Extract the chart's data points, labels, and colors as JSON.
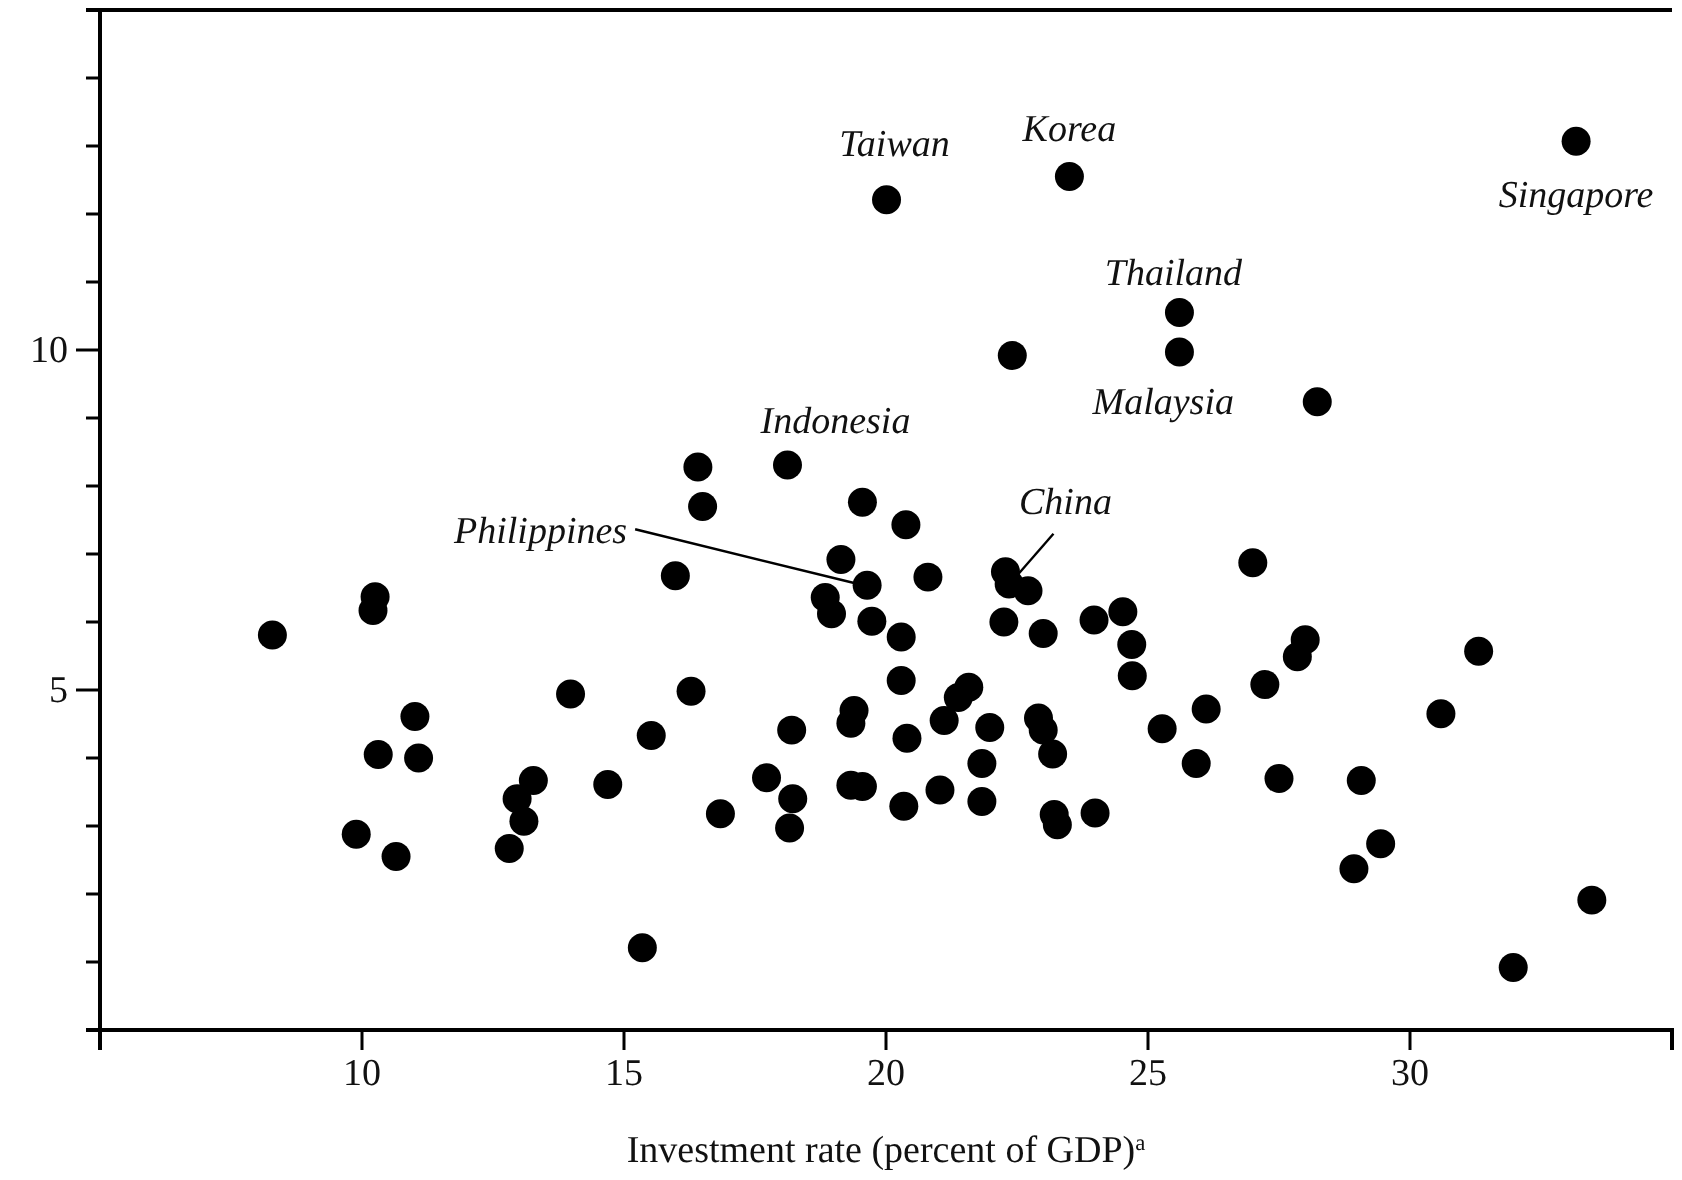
{
  "chart_data": {
    "type": "scatter",
    "xlabel": "Investment rate (percent of GDP)$^{a}$",
    "xlim": [
      5,
      35
    ],
    "xticks": [
      10,
      15,
      20,
      25,
      30
    ],
    "ylim": [
      0,
      15
    ],
    "yticks": [
      {
        "value": 1,
        "label": null
      },
      {
        "value": 2,
        "label": null
      },
      {
        "value": 3,
        "label": null
      },
      {
        "value": 4,
        "label": null
      },
      5,
      {
        "value": 6,
        "label": null
      },
      {
        "value": 7,
        "label": null
      },
      {
        "value": 8,
        "label": null
      },
      {
        "value": 9,
        "label": null
      },
      10,
      {
        "value": 11,
        "label": null
      },
      {
        "value": 12,
        "label": null
      },
      {
        "value": 13,
        "label": null
      },
      {
        "value": 14,
        "label": null
      }
    ],
    "grid": false,
    "marker": "circle",
    "series": [
      {
        "color": "#000000",
        "x": [
          8.29,
          10.25,
          10.21,
          11.01,
          10.31,
          11.08,
          9.89,
          10.65,
          12.81,
          12.96,
          13.09,
          13.27,
          13.98,
          14.69,
          15.35,
          15.52,
          15.98,
          16.28,
          16.84,
          17.72,
          18.2,
          18.22,
          18.16,
          18.84,
          18.96,
          16.41,
          16.5,
          18.12,
          19.14,
          20.01,
          23.5,
          33.17,
          25.6,
          25.6,
          22.41,
          28.23,
          19.55,
          20.38,
          27.0,
          19.64,
          20.8,
          22.28,
          22.35,
          22.71,
          19.73,
          20.29,
          22.25,
          23.0,
          23.97,
          24.52,
          24.69,
          24.7,
          20.29,
          21.58,
          21.38,
          19.39,
          19.33,
          21.11,
          21.98,
          22.91,
          23.0,
          23.18,
          20.4,
          21.83,
          19.33,
          19.55,
          21.03,
          20.34,
          21.83,
          23.21,
          23.27,
          23.99,
          25.27,
          26.11,
          25.92,
          27.23,
          27.5,
          27.85,
          28.0,
          29.07,
          28.93,
          29.44,
          30.59,
          31.31,
          31.97,
          33.47
        ],
        "values": [
          5.81,
          6.37,
          6.17,
          4.61,
          4.05,
          4.0,
          2.88,
          2.55,
          2.67,
          3.4,
          3.07,
          3.67,
          4.94,
          3.61,
          1.21,
          4.33,
          6.68,
          4.98,
          3.18,
          3.71,
          4.41,
          3.4,
          2.97,
          6.36,
          6.12,
          8.28,
          7.7,
          8.31,
          6.92,
          12.21,
          12.55,
          13.07,
          10.55,
          9.97,
          9.92,
          9.24,
          7.76,
          7.43,
          6.87,
          6.54,
          6.66,
          6.74,
          6.56,
          6.46,
          6.01,
          5.78,
          6.0,
          5.83,
          6.03,
          6.15,
          5.67,
          5.21,
          5.14,
          5.04,
          4.89,
          4.7,
          4.51,
          4.55,
          4.45,
          4.59,
          4.41,
          4.06,
          4.29,
          3.92,
          3.6,
          3.58,
          3.53,
          3.29,
          3.36,
          3.17,
          3.02,
          3.19,
          4.43,
          4.72,
          3.92,
          5.08,
          3.7,
          5.49,
          5.74,
          3.67,
          2.37,
          2.74,
          4.65,
          5.57,
          0.92,
          1.91
        ]
      }
    ],
    "annotations": [
      {
        "text": "Taiwan",
        "x": 20.01,
        "y": 12.21
      },
      {
        "text": "Korea",
        "x": 23.5,
        "y": 12.55
      },
      {
        "text": "Singapore",
        "x": 33.17,
        "y": 13.07
      },
      {
        "text": "Thailand",
        "x": 25.6,
        "y": 10.55
      },
      {
        "text": "Malaysia",
        "x": 28.23,
        "y": 9.24
      },
      {
        "text": "Indonesia",
        "x": 18.12,
        "y": 8.31
      },
      {
        "text": "China",
        "x": 22.28,
        "y": 6.74
      },
      {
        "text": "Philippines",
        "x": 19.64,
        "y": 6.54
      }
    ]
  }
}
